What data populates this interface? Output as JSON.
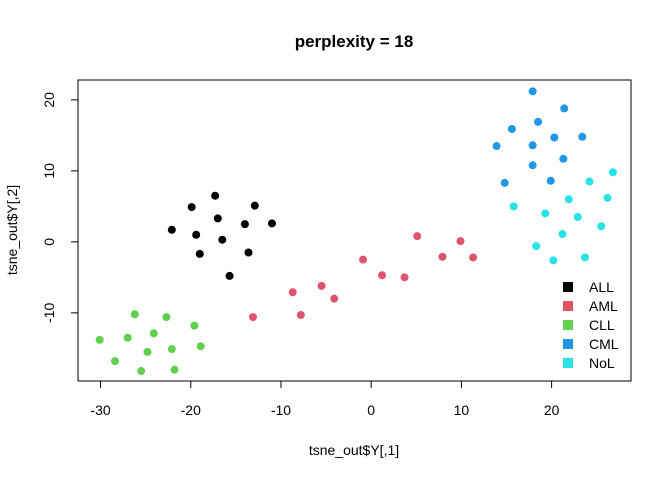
{
  "chart_data": {
    "type": "scatter",
    "title": "perplexity = 18",
    "xlabel": "tsne_out$Y[,1]",
    "ylabel": "tsne_out$Y[,2]",
    "xlim": [
      -32.5,
      28.8
    ],
    "ylim": [
      -19.6,
      22.8
    ],
    "xticks": [
      -30,
      -20,
      -10,
      0,
      10,
      20
    ],
    "yticks": [
      -10,
      0,
      10,
      20
    ],
    "xtick_labels": [
      "-30",
      "-20",
      "-10",
      "0",
      "10",
      "20"
    ],
    "ytick_labels": [
      "-10",
      "0",
      "10",
      "20"
    ],
    "legend_position": "bottom-right",
    "series": [
      {
        "name": "ALL",
        "color": "#000000",
        "points": [
          [
            -22.1,
            1.7
          ],
          [
            -19.9,
            4.9
          ],
          [
            -19.4,
            1.0
          ],
          [
            -19.0,
            -1.7
          ],
          [
            -17.3,
            6.5
          ],
          [
            -17.0,
            3.3
          ],
          [
            -16.5,
            0.3
          ],
          [
            -15.7,
            -4.8
          ],
          [
            -14.0,
            2.5
          ],
          [
            -13.6,
            -1.5
          ],
          [
            -12.9,
            5.1
          ],
          [
            -11.0,
            2.6
          ]
        ]
      },
      {
        "name": "AML",
        "color": "#DF536B",
        "points": [
          [
            -13.1,
            -10.6
          ],
          [
            -8.7,
            -7.1
          ],
          [
            -7.8,
            -10.3
          ],
          [
            -5.5,
            -6.2
          ],
          [
            -4.1,
            -8.0
          ],
          [
            -0.9,
            -2.5
          ],
          [
            1.2,
            -4.7
          ],
          [
            3.7,
            -5.0
          ],
          [
            5.1,
            0.8
          ],
          [
            7.9,
            -2.1
          ],
          [
            9.9,
            0.1
          ],
          [
            11.3,
            -2.2
          ]
        ]
      },
      {
        "name": "CLL",
        "color": "#61D04F",
        "points": [
          [
            -30.1,
            -13.8
          ],
          [
            -28.4,
            -16.8
          ],
          [
            -27.0,
            -13.5
          ],
          [
            -26.2,
            -10.2
          ],
          [
            -25.5,
            -18.2
          ],
          [
            -24.8,
            -15.5
          ],
          [
            -24.1,
            -12.9
          ],
          [
            -22.7,
            -10.6
          ],
          [
            -22.1,
            -15.1
          ],
          [
            -21.8,
            -18.0
          ],
          [
            -19.6,
            -11.8
          ],
          [
            -18.9,
            -14.7
          ]
        ]
      },
      {
        "name": "CML",
        "color": "#2297E6",
        "points": [
          [
            13.9,
            13.5
          ],
          [
            14.8,
            8.3
          ],
          [
            15.6,
            15.9
          ],
          [
            17.9,
            21.2
          ],
          [
            17.9,
            13.6
          ],
          [
            17.9,
            10.8
          ],
          [
            18.5,
            16.9
          ],
          [
            19.9,
            8.6
          ],
          [
            20.3,
            14.7
          ],
          [
            21.3,
            11.7
          ],
          [
            21.4,
            18.8
          ],
          [
            23.4,
            14.8
          ]
        ]
      },
      {
        "name": "NoL",
        "color": "#28E2E5",
        "points": [
          [
            15.8,
            5.0
          ],
          [
            18.3,
            -0.6
          ],
          [
            19.3,
            4.0
          ],
          [
            20.2,
            -2.6
          ],
          [
            21.2,
            1.1
          ],
          [
            21.9,
            6.0
          ],
          [
            22.9,
            3.5
          ],
          [
            23.7,
            -2.2
          ],
          [
            24.2,
            8.5
          ],
          [
            25.5,
            2.2
          ],
          [
            26.2,
            6.2
          ],
          [
            26.8,
            9.8
          ]
        ]
      }
    ]
  }
}
